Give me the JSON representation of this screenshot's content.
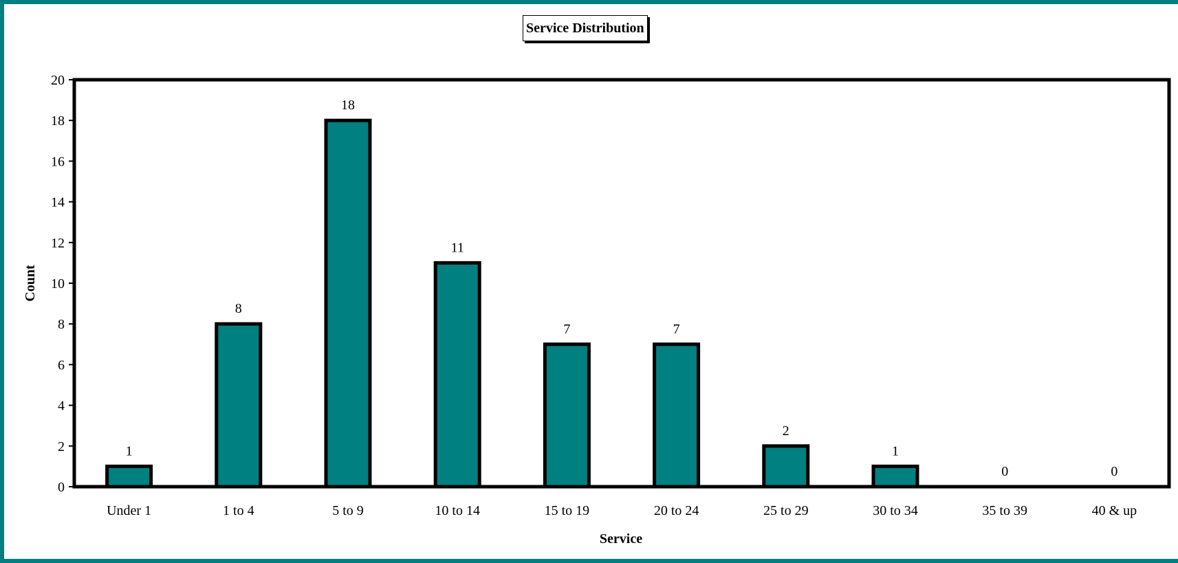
{
  "chart_data": {
    "type": "bar",
    "title": "Service Distribution",
    "xlabel": "Service",
    "ylabel": "Count",
    "categories": [
      "Under 1",
      "1 to 4",
      "5 to 9",
      "10 to 14",
      "15 to 19",
      "20 to 24",
      "25 to 29",
      "30 to 34",
      "35 to 39",
      "40 & up"
    ],
    "values": [
      1,
      8,
      18,
      11,
      7,
      7,
      2,
      1,
      0,
      0
    ],
    "ylim": [
      0,
      20
    ],
    "yticks": [
      0,
      2,
      4,
      6,
      8,
      10,
      12,
      14,
      16,
      18,
      20
    ],
    "grid": false,
    "legend": "none",
    "data_labels": true,
    "colors": {
      "bar": "#008080",
      "frame": "#008080",
      "outline": "#000000"
    }
  }
}
